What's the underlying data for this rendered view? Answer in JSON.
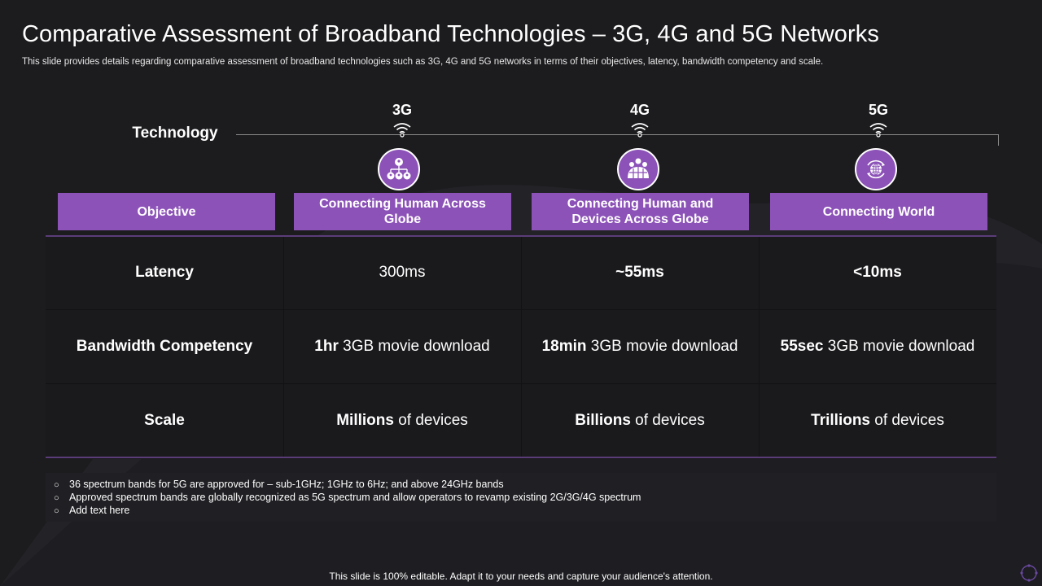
{
  "title": "Comparative Assessment of Broadband Technologies – 3G, 4G and 5G Networks",
  "subtitle": "This slide provides details regarding comparative assessment of broadband technologies such as 3G, 4G and 5G networks in terms of their objectives, latency, bandwidth competency and scale.",
  "technology_label": "Technology",
  "generations": [
    {
      "name": "3G",
      "icon": "people-network-icon"
    },
    {
      "name": "4G",
      "icon": "group-globe-icon"
    },
    {
      "name": "5G",
      "icon": "globe-cycle-icon"
    }
  ],
  "objective": {
    "label": "Objective",
    "values": [
      "Connecting Human Across Globe",
      "Connecting Human and Devices Across Globe",
      "Connecting World"
    ]
  },
  "rows": [
    {
      "label": "Latency",
      "cells": [
        {
          "bold": "",
          "text": "300ms"
        },
        {
          "bold": "~55ms",
          "text": ""
        },
        {
          "bold": "<10ms",
          "text": ""
        }
      ]
    },
    {
      "label": "Bandwidth Competency",
      "cells": [
        {
          "bold": "1hr",
          "text": " 3GB movie download"
        },
        {
          "bold": "18min",
          "text": " 3GB movie download"
        },
        {
          "bold": "55sec",
          "text": " 3GB movie download"
        }
      ]
    },
    {
      "label": "Scale",
      "cells": [
        {
          "bold": "Millions",
          "text": " of devices"
        },
        {
          "bold": "Billions",
          "text": " of devices"
        },
        {
          "bold": "Trillions",
          "text": " of devices"
        }
      ]
    }
  ],
  "notes": [
    "36 spectrum bands for 5G are approved for – sub-1GHz; 1GHz to 6Hz; and above 24GHz bands",
    "Approved spectrum bands are globally recognized as 5G spectrum and allow operators to revamp existing 2G/3G/4G spectrum",
    "Add text here"
  ],
  "note_bullet": "○",
  "footer": "This slide is 100% editable. Adapt it to your needs and capture your audience's attention.",
  "colors": {
    "background": "#1c1b1e",
    "accent_purple": "#8c52b8",
    "rule_purple": "#5a3c78",
    "text": "#ffffff"
  }
}
